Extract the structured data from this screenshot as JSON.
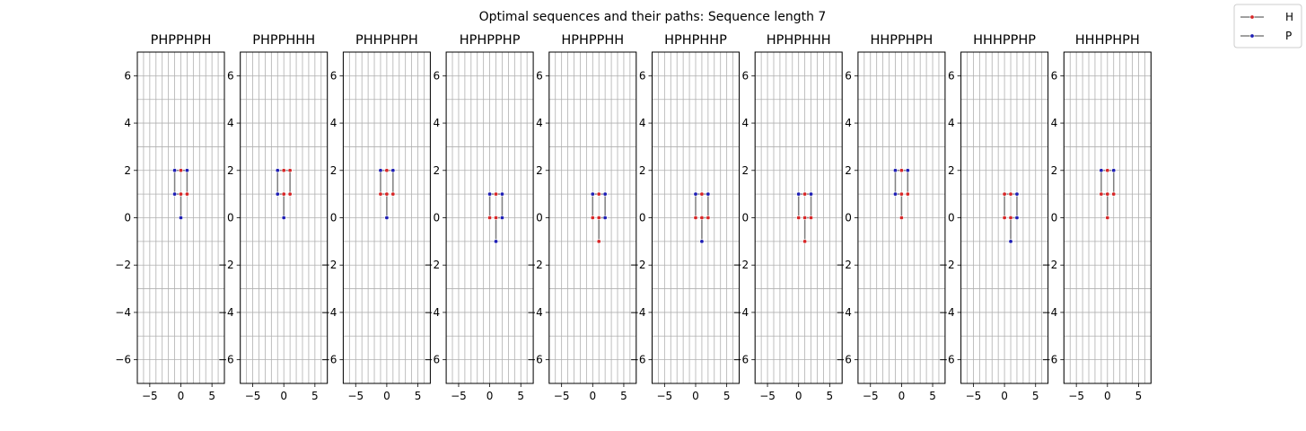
{
  "figure": {
    "suptitle": "Optimal sequences and their paths: Sequence length 7"
  },
  "colors": {
    "H": "#d62728",
    "P": "#1f1fb4",
    "path_line": "#808080",
    "grid": "#b0b0b0",
    "axes": "#000000"
  },
  "legend": {
    "placement": "upper right",
    "entries": [
      {
        "label": "H",
        "color": "#d62728"
      },
      {
        "label": "P",
        "color": "#1f1fb4"
      }
    ]
  },
  "chart_data": [
    {
      "type": "line",
      "title": "PHPPHPH",
      "xlim": [
        -7,
        7
      ],
      "ylim": [
        -7,
        7
      ],
      "grid": true,
      "xticks": [
        -5,
        0,
        5
      ],
      "yticks": [
        -6,
        -4,
        -2,
        0,
        2,
        4,
        6
      ],
      "points": [
        {
          "x": 0,
          "y": 0,
          "t": "P"
        },
        {
          "x": 0,
          "y": 1,
          "t": "H"
        },
        {
          "x": -1,
          "y": 1,
          "t": "P"
        },
        {
          "x": -1,
          "y": 2,
          "t": "P"
        },
        {
          "x": 0,
          "y": 2,
          "t": "H"
        },
        {
          "x": 1,
          "y": 2,
          "t": "P"
        },
        {
          "x": 1,
          "y": 1,
          "t": "H"
        }
      ]
    },
    {
      "type": "line",
      "title": "PHPPHHH",
      "xlim": [
        -7,
        7
      ],
      "ylim": [
        -7,
        7
      ],
      "grid": true,
      "xticks": [
        -5,
        0,
        5
      ],
      "yticks": [
        -6,
        -4,
        -2,
        0,
        2,
        4,
        6
      ],
      "points": [
        {
          "x": 0,
          "y": 0,
          "t": "P"
        },
        {
          "x": 0,
          "y": 1,
          "t": "H"
        },
        {
          "x": -1,
          "y": 1,
          "t": "P"
        },
        {
          "x": -1,
          "y": 2,
          "t": "P"
        },
        {
          "x": 0,
          "y": 2,
          "t": "H"
        },
        {
          "x": 1,
          "y": 2,
          "t": "H"
        },
        {
          "x": 1,
          "y": 1,
          "t": "H"
        }
      ]
    },
    {
      "type": "line",
      "title": "PHHPHPH",
      "xlim": [
        -7,
        7
      ],
      "ylim": [
        -7,
        7
      ],
      "grid": true,
      "xticks": [
        -5,
        0,
        5
      ],
      "yticks": [
        -6,
        -4,
        -2,
        0,
        2,
        4,
        6
      ],
      "points": [
        {
          "x": 0,
          "y": 0,
          "t": "P"
        },
        {
          "x": 0,
          "y": 1,
          "t": "H"
        },
        {
          "x": -1,
          "y": 1,
          "t": "H"
        },
        {
          "x": -1,
          "y": 2,
          "t": "P"
        },
        {
          "x": 0,
          "y": 2,
          "t": "H"
        },
        {
          "x": 1,
          "y": 2,
          "t": "P"
        },
        {
          "x": 1,
          "y": 1,
          "t": "H"
        }
      ]
    },
    {
      "type": "line",
      "title": "HPHPPHP",
      "xlim": [
        -7,
        7
      ],
      "ylim": [
        -7,
        7
      ],
      "grid": true,
      "xticks": [
        -5,
        0,
        5
      ],
      "yticks": [
        -6,
        -4,
        -2,
        0,
        2,
        4,
        6
      ],
      "points": [
        {
          "x": 0,
          "y": 0,
          "t": "H"
        },
        {
          "x": 0,
          "y": 1,
          "t": "P"
        },
        {
          "x": 1,
          "y": 1,
          "t": "H"
        },
        {
          "x": 2,
          "y": 1,
          "t": "P"
        },
        {
          "x": 2,
          "y": 0,
          "t": "P"
        },
        {
          "x": 1,
          "y": 0,
          "t": "H"
        },
        {
          "x": 1,
          "y": -1,
          "t": "P"
        }
      ]
    },
    {
      "type": "line",
      "title": "HPHPPHH",
      "xlim": [
        -7,
        7
      ],
      "ylim": [
        -7,
        7
      ],
      "grid": true,
      "xticks": [
        -5,
        0,
        5
      ],
      "yticks": [
        -6,
        -4,
        -2,
        0,
        2,
        4,
        6
      ],
      "points": [
        {
          "x": 0,
          "y": 0,
          "t": "H"
        },
        {
          "x": 0,
          "y": 1,
          "t": "P"
        },
        {
          "x": 1,
          "y": 1,
          "t": "H"
        },
        {
          "x": 2,
          "y": 1,
          "t": "P"
        },
        {
          "x": 2,
          "y": 0,
          "t": "P"
        },
        {
          "x": 1,
          "y": 0,
          "t": "H"
        },
        {
          "x": 1,
          "y": -1,
          "t": "H"
        }
      ]
    },
    {
      "type": "line",
      "title": "HPHPHHP",
      "xlim": [
        -7,
        7
      ],
      "ylim": [
        -7,
        7
      ],
      "grid": true,
      "xticks": [
        -5,
        0,
        5
      ],
      "yticks": [
        -6,
        -4,
        -2,
        0,
        2,
        4,
        6
      ],
      "points": [
        {
          "x": 0,
          "y": 0,
          "t": "H"
        },
        {
          "x": 0,
          "y": 1,
          "t": "P"
        },
        {
          "x": 1,
          "y": 1,
          "t": "H"
        },
        {
          "x": 2,
          "y": 1,
          "t": "P"
        },
        {
          "x": 2,
          "y": 0,
          "t": "H"
        },
        {
          "x": 1,
          "y": 0,
          "t": "H"
        },
        {
          "x": 1,
          "y": -1,
          "t": "P"
        }
      ]
    },
    {
      "type": "line",
      "title": "HPHPHHH",
      "xlim": [
        -7,
        7
      ],
      "ylim": [
        -7,
        7
      ],
      "grid": true,
      "xticks": [
        -5,
        0,
        5
      ],
      "yticks": [
        -6,
        -4,
        -2,
        0,
        2,
        4,
        6
      ],
      "points": [
        {
          "x": 0,
          "y": 0,
          "t": "H"
        },
        {
          "x": 0,
          "y": 1,
          "t": "P"
        },
        {
          "x": 1,
          "y": 1,
          "t": "H"
        },
        {
          "x": 2,
          "y": 1,
          "t": "P"
        },
        {
          "x": 2,
          "y": 0,
          "t": "H"
        },
        {
          "x": 1,
          "y": 0,
          "t": "H"
        },
        {
          "x": 1,
          "y": -1,
          "t": "H"
        }
      ]
    },
    {
      "type": "line",
      "title": "HHPPHPH",
      "xlim": [
        -7,
        7
      ],
      "ylim": [
        -7,
        7
      ],
      "grid": true,
      "xticks": [
        -5,
        0,
        5
      ],
      "yticks": [
        -6,
        -4,
        -2,
        0,
        2,
        4,
        6
      ],
      "points": [
        {
          "x": 0,
          "y": 0,
          "t": "H"
        },
        {
          "x": 0,
          "y": 1,
          "t": "H"
        },
        {
          "x": -1,
          "y": 1,
          "t": "P"
        },
        {
          "x": -1,
          "y": 2,
          "t": "P"
        },
        {
          "x": 0,
          "y": 2,
          "t": "H"
        },
        {
          "x": 1,
          "y": 2,
          "t": "P"
        },
        {
          "x": 1,
          "y": 1,
          "t": "H"
        }
      ]
    },
    {
      "type": "line",
      "title": "HHHPPHP",
      "xlim": [
        -7,
        7
      ],
      "ylim": [
        -7,
        7
      ],
      "grid": true,
      "xticks": [
        -5,
        0,
        5
      ],
      "yticks": [
        -6,
        -4,
        -2,
        0,
        2,
        4,
        6
      ],
      "points": [
        {
          "x": 0,
          "y": 0,
          "t": "H"
        },
        {
          "x": 0,
          "y": 1,
          "t": "H"
        },
        {
          "x": 1,
          "y": 1,
          "t": "H"
        },
        {
          "x": 2,
          "y": 1,
          "t": "P"
        },
        {
          "x": 2,
          "y": 0,
          "t": "P"
        },
        {
          "x": 1,
          "y": 0,
          "t": "H"
        },
        {
          "x": 1,
          "y": -1,
          "t": "P"
        }
      ]
    },
    {
      "type": "line",
      "title": "HHHPHPH",
      "xlim": [
        -7,
        7
      ],
      "ylim": [
        -7,
        7
      ],
      "grid": true,
      "xticks": [
        -5,
        0,
        5
      ],
      "yticks": [
        -6,
        -4,
        -2,
        0,
        2,
        4,
        6
      ],
      "points": [
        {
          "x": 0,
          "y": 0,
          "t": "H"
        },
        {
          "x": 0,
          "y": 1,
          "t": "H"
        },
        {
          "x": -1,
          "y": 1,
          "t": "H"
        },
        {
          "x": -1,
          "y": 2,
          "t": "P"
        },
        {
          "x": 0,
          "y": 2,
          "t": "H"
        },
        {
          "x": 1,
          "y": 2,
          "t": "P"
        },
        {
          "x": 1,
          "y": 1,
          "t": "H"
        }
      ]
    }
  ]
}
